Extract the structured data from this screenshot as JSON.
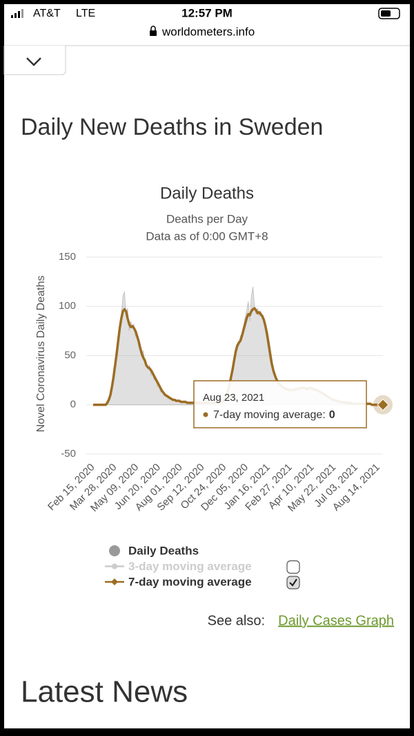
{
  "status_bar": {
    "carrier": "AT&T",
    "network": "LTE",
    "time": "12:57 PM",
    "url": "worldometers.info"
  },
  "page": {
    "heading": "Daily New Deaths in Sweden",
    "see_also": "See also:",
    "link": "Daily Cases Graph",
    "latest_news": "Latest News"
  },
  "chart_data": {
    "type": "line",
    "title": "Daily Deaths",
    "subtitle": "Deaths per Day",
    "subtitle2": "Data as of 0:00 GMT+8",
    "y_label": "Novel Coronavirus Daily Deaths",
    "ylim": [
      -50,
      150
    ],
    "yticks": [
      -50,
      0,
      50,
      100,
      150
    ],
    "grid": true,
    "categories": [
      "Feb 15, 2020",
      null,
      null,
      null,
      null,
      null,
      null,
      null,
      null,
      null,
      null,
      null,
      null,
      null,
      "Mar 28, 2020",
      null,
      null,
      null,
      null,
      null,
      null,
      null,
      null,
      null,
      null,
      null,
      null,
      null,
      "May 09, 2020",
      null,
      null,
      null,
      null,
      null,
      null,
      null,
      null,
      null,
      null,
      null,
      null,
      null,
      "Jun 20, 2020",
      null,
      null,
      null,
      null,
      null,
      null,
      null,
      null,
      null,
      null,
      null,
      null,
      null,
      "Aug 01, 2020",
      null,
      null,
      null,
      null,
      null,
      null,
      null,
      null,
      null,
      null,
      null,
      null,
      null,
      "Sep 12, 2020",
      null,
      null,
      null,
      null,
      null,
      null,
      null,
      null,
      null,
      null,
      null,
      null,
      null,
      "Oct 24, 2020",
      null,
      null,
      null,
      null,
      null,
      null,
      null,
      null,
      null,
      null,
      null,
      null,
      null,
      "Dec 05, 2020",
      null,
      null,
      null,
      null,
      null,
      null,
      null,
      null,
      null,
      null,
      null,
      null,
      null,
      "Jan 16, 2021",
      null,
      null,
      null,
      null,
      null,
      null,
      null,
      null,
      null,
      null,
      null,
      null,
      null,
      "Feb 27, 2021",
      null,
      null,
      null,
      null,
      null,
      null,
      null,
      null,
      null,
      null,
      null,
      null,
      null,
      "Apr 10, 2021",
      null,
      null,
      null,
      null,
      null,
      null,
      null,
      null,
      null,
      null,
      null,
      null,
      null,
      "May 22, 2021",
      null,
      null,
      null,
      null,
      null,
      null,
      null,
      null,
      null,
      null,
      null,
      null,
      null,
      "Jul 03, 2021",
      null,
      null,
      null,
      null,
      null,
      null,
      null,
      null,
      null,
      null,
      null,
      null,
      null,
      "Aug 14, 2021",
      null,
      null,
      null
    ],
    "series": [
      {
        "name": "Daily Deaths",
        "color": "#999999",
        "style": "area",
        "values": [
          0,
          0,
          0,
          0,
          0,
          0,
          0,
          0,
          1,
          3,
          6,
          12,
          20,
          30,
          45,
          50,
          70,
          80,
          92,
          110,
          115,
          90,
          98,
          75,
          85,
          78,
          82,
          70,
          74,
          60,
          62,
          50,
          55,
          42,
          40,
          36,
          40,
          30,
          33,
          25,
          28,
          18,
          20,
          13,
          15,
          10,
          9,
          9,
          6,
          8,
          5,
          6,
          4,
          5,
          3,
          4,
          3,
          3,
          2,
          4,
          2,
          3,
          1,
          2,
          3,
          2,
          1,
          3,
          2,
          2,
          2,
          1,
          3,
          2,
          2,
          1,
          3,
          2,
          2,
          3,
          2,
          4,
          3,
          5,
          7,
          10,
          15,
          22,
          30,
          38,
          48,
          58,
          62,
          60,
          70,
          72,
          80,
          88,
          95,
          105,
          85,
          110,
          120,
          100,
          92,
          98,
          90,
          95,
          88,
          84,
          75,
          65,
          55,
          45,
          38,
          32,
          28,
          25,
          20,
          22,
          18,
          19,
          16,
          18,
          15,
          17,
          14,
          16,
          14,
          17,
          15,
          18,
          16,
          18,
          16,
          17,
          15,
          17,
          18,
          16,
          17,
          15,
          16,
          14,
          15,
          12,
          13,
          10,
          11,
          8,
          9,
          6,
          7,
          5,
          4,
          5,
          3,
          4,
          2,
          3,
          2,
          3,
          1,
          2,
          2,
          1,
          2,
          1,
          1,
          1,
          0,
          1,
          1,
          2,
          0,
          1,
          1,
          0,
          1,
          0,
          0,
          1,
          0,
          0,
          1,
          0
        ]
      },
      {
        "name": "3-day moving average",
        "color": "#cccccc",
        "style": "hidden",
        "checkbox": false
      },
      {
        "name": "7-day moving average",
        "color": "#9c6d24",
        "style": "line",
        "checkbox": true,
        "values": [
          0,
          0,
          0,
          0,
          0,
          0,
          0,
          0,
          0,
          2,
          5,
          10,
          18,
          28,
          40,
          52,
          65,
          78,
          88,
          95,
          97,
          95,
          88,
          82,
          79,
          80,
          78,
          75,
          70,
          65,
          58,
          52,
          48,
          45,
          40,
          38,
          37,
          35,
          32,
          29,
          26,
          23,
          20,
          17,
          14,
          12,
          10,
          9,
          8,
          7,
          6,
          5,
          5,
          4,
          4,
          4,
          3,
          3,
          3,
          3,
          2,
          2,
          2,
          2,
          2,
          2,
          2,
          2,
          2,
          2,
          2,
          2,
          2,
          2,
          2,
          2,
          2,
          2,
          2,
          2,
          2,
          3,
          3,
          4,
          6,
          9,
          14,
          20,
          28,
          36,
          45,
          54,
          60,
          63,
          65,
          70,
          76,
          82,
          88,
          92,
          91,
          95,
          97,
          98,
          96,
          93,
          94,
          92,
          90,
          86,
          80,
          72,
          62,
          52,
          42,
          35,
          30,
          26,
          23,
          21,
          19,
          18,
          17,
          16,
          16,
          15,
          15,
          15,
          15,
          16,
          16,
          16,
          17,
          17,
          17,
          17,
          16,
          16,
          17,
          17,
          16,
          16,
          15,
          15,
          14,
          13,
          12,
          11,
          10,
          9,
          8,
          7,
          6,
          5,
          5,
          4,
          4,
          3,
          3,
          3,
          2,
          2,
          2,
          2,
          2,
          1,
          1,
          1,
          1,
          1,
          1,
          1,
          1,
          1,
          1,
          1,
          1,
          1,
          0,
          0,
          0,
          0,
          0,
          0,
          0,
          0
        ]
      }
    ],
    "tooltip": {
      "date": "Aug 23, 2021",
      "label": "7-day moving average:",
      "series": 2,
      "index": 185
    }
  }
}
